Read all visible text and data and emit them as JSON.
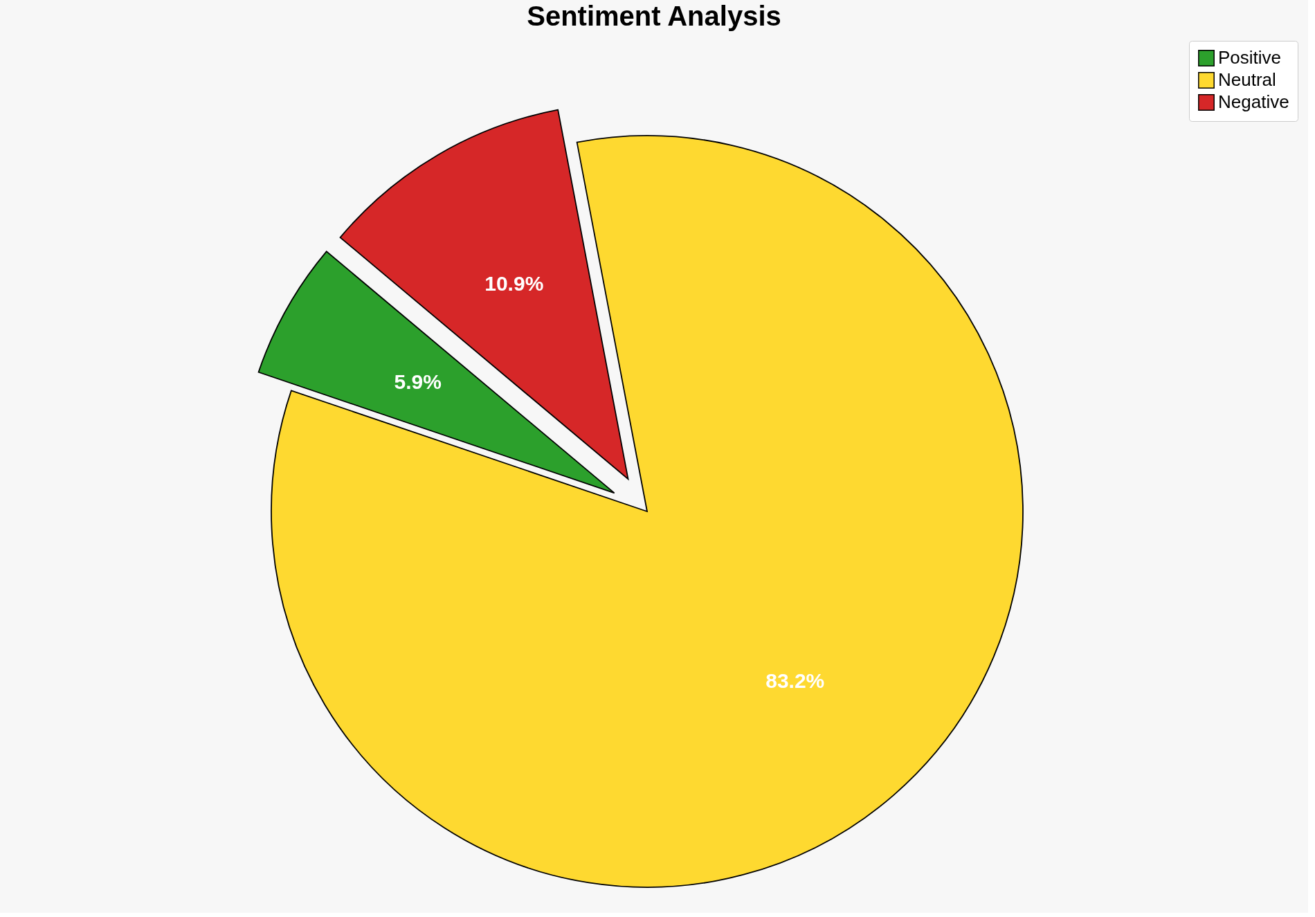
{
  "chart_data": {
    "type": "pie",
    "title": "Sentiment Analysis",
    "categories": [
      "Positive",
      "Neutral",
      "Negative"
    ],
    "values": [
      5.9,
      83.2,
      10.9
    ],
    "colors": [
      "#2ca02c",
      "#fed930",
      "#d62728"
    ],
    "value_labels": [
      "5.9%",
      "83.2%",
      "10.9%"
    ],
    "legend": "top right"
  }
}
